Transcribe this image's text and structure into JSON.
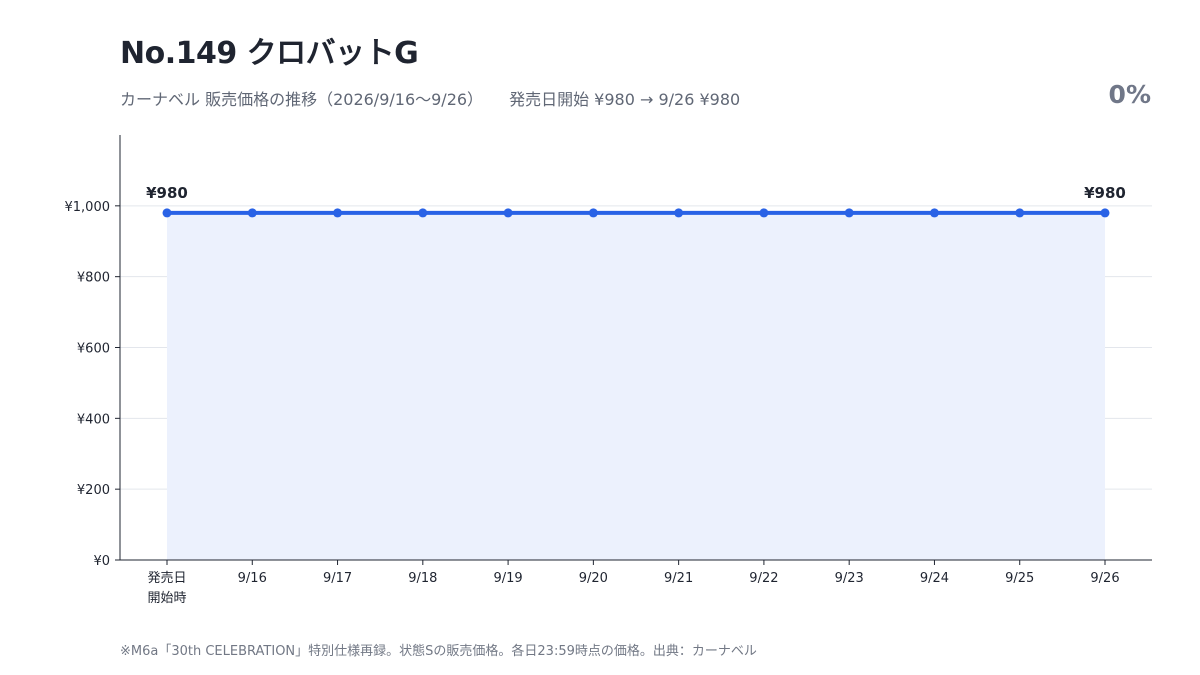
{
  "header": {
    "title": "No.149 クロバットG",
    "subtitle": "カーナベル 販売価格の推移（2026/9/16〜9/26）",
    "summary": "発売日開始 ¥980 → 9/26 ¥980",
    "change_percent": "0%"
  },
  "footnote": "※M6a「30th CELEBRATION」特別仕様再録。状態Sの販売価格。各日23:59時点の価格。出典：カーナベル",
  "colors": {
    "line": "#2962e6",
    "area": "#ecf1fd",
    "grid": "#e3e6ec",
    "axis": "#1f2430"
  },
  "chart_data": {
    "type": "line",
    "categories": [
      "発売日\n開始時",
      "9/16",
      "9/17",
      "9/18",
      "9/19",
      "9/20",
      "9/21",
      "9/22",
      "9/23",
      "9/24",
      "9/25",
      "9/26"
    ],
    "series": [
      {
        "values": [
          980,
          980,
          980,
          980,
          980,
          980,
          980,
          980,
          980,
          980,
          980,
          980
        ]
      }
    ],
    "ylim": [
      0,
      1200
    ],
    "yticks": [
      0,
      200,
      400,
      600,
      800,
      1000
    ],
    "ytick_labels": [
      "¥0",
      "¥200",
      "¥400",
      "¥600",
      "¥800",
      "¥1,000"
    ],
    "data_labels": [
      {
        "index": 0,
        "text": "¥980"
      },
      {
        "index": 11,
        "text": "¥980"
      }
    ],
    "area_fill": true,
    "grid": true,
    "xlabel": "",
    "ylabel": ""
  }
}
